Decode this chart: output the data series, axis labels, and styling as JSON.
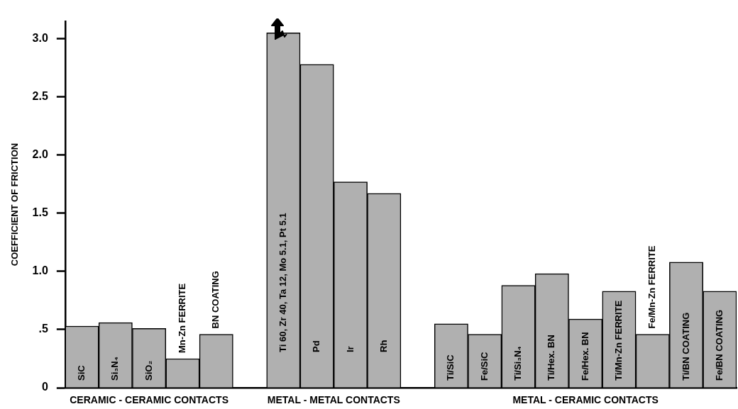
{
  "chart_data": {
    "type": "bar",
    "ylabel": "COEFFICIENT OF FRICTION",
    "categories": [
      "SiC",
      "Si₃N₄",
      "SiO₂",
      "Mn-Zn FERRITE",
      "BN COATING",
      null,
      "Ti 60, Zr 40, Ta 12, Mo 5.1, Pt 5.1",
      "Pd",
      "Ir",
      "Rh",
      null,
      "Ti/SiC",
      "Fe/SiC",
      "Ti/Si₃N₄",
      "Ti/Hex. BN",
      "Fe/Hex. BN",
      "Ti/Mn-Zn FERRITE",
      "Fe/Mn-Zn FERRITE",
      "Ti/BN COATING",
      "Fe/BN COATING"
    ],
    "values": [
      0.53,
      0.56,
      0.51,
      0.25,
      0.46,
      null,
      3.05,
      2.78,
      1.77,
      1.67,
      null,
      0.55,
      0.46,
      0.88,
      0.98,
      0.59,
      0.83,
      0.46,
      1.08,
      0.83
    ],
    "color": "#b0b0b0",
    "ylim": [
      0,
      3.15
    ],
    "yticks": [
      0,
      {
        "value": 0.5,
        "label": ".5"
      },
      {
        "value": 1,
        "label": "1.0"
      },
      {
        "value": 1.5,
        "label": "1.5"
      },
      {
        "value": 2,
        "label": "2.0"
      },
      {
        "value": 2.5,
        "label": "2.5"
      },
      {
        "value": 3,
        "label": "3.0"
      }
    ],
    "tick_labels": "y",
    "grid": false,
    "annotations": [
      "CERAMIC - CERAMIC CONTACTS",
      "METAL - METAL CONTACTS",
      "METAL - CERAMIC CONTACTS"
    ]
  }
}
